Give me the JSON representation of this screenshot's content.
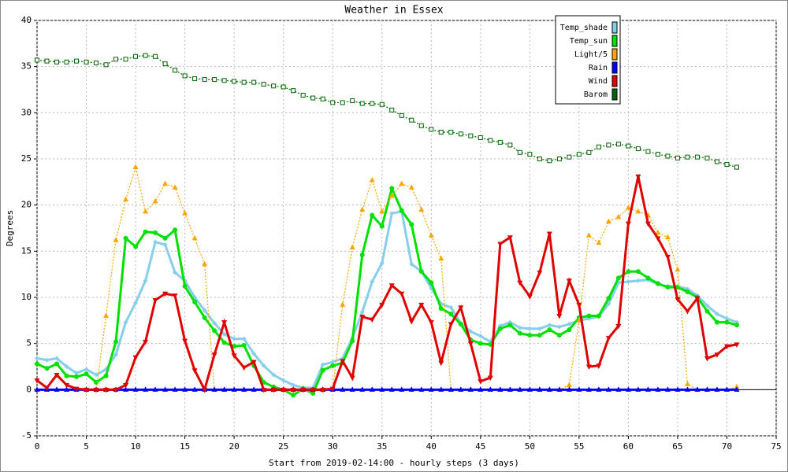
{
  "chart_data": {
    "type": "line",
    "title": "Weather in Essex",
    "x_label": "Start from 2019-02-14:00 - hourly steps (3 days)",
    "y_label": "Degrees",
    "x": [
      0,
      1,
      2,
      3,
      4,
      5,
      6,
      7,
      8,
      9,
      10,
      11,
      12,
      13,
      14,
      15,
      16,
      17,
      18,
      19,
      20,
      21,
      22,
      23,
      24,
      25,
      26,
      27,
      28,
      29,
      30,
      31,
      32,
      33,
      34,
      35,
      36,
      37,
      38,
      39,
      40,
      41,
      42,
      43,
      44,
      45,
      46,
      47,
      48,
      49,
      50,
      51,
      52,
      53,
      54,
      55,
      56,
      57,
      58,
      59,
      60,
      61,
      62,
      63,
      64,
      65,
      66,
      67,
      68,
      69,
      70,
      71
    ],
    "xlim": [
      0,
      75
    ],
    "xticks": [
      0,
      5,
      10,
      15,
      20,
      25,
      30,
      35,
      40,
      45,
      50,
      55,
      60,
      65,
      70,
      75
    ],
    "ylim": [
      -5,
      40
    ],
    "yticks": [
      -5,
      0,
      5,
      10,
      15,
      20,
      25,
      30,
      35,
      40
    ],
    "grid": true,
    "legend": "upper right",
    "series": [
      {
        "name": "Temp_shade",
        "color": "#87ceeb",
        "values": [
          3.4,
          3.2,
          3.4,
          2.5,
          1.8,
          2.2,
          1.6,
          2.2,
          3.8,
          7.3,
          9.4,
          11.8,
          16.0,
          15.7,
          12.7,
          11.8,
          10.0,
          8.6,
          7.2,
          6.0,
          5.5,
          5.5,
          3.9,
          2.6,
          1.6,
          1.0,
          0.5,
          0.2,
          0.2,
          2.7,
          3.0,
          3.4,
          5.6,
          8.4,
          11.7,
          13.7,
          19.1,
          19.3,
          13.6,
          12.8,
          11.0,
          9.3,
          8.9,
          7.2,
          6.3,
          5.8,
          5.2,
          6.9,
          7.3,
          6.7,
          6.6,
          6.6,
          7.0,
          6.8,
          7.1,
          7.5,
          7.7,
          7.9,
          9.3,
          11.6,
          11.7,
          11.8,
          11.9,
          11.4,
          11.2,
          11.2,
          10.9,
          10.2,
          9.1,
          8.2,
          7.7,
          7.3
        ]
      },
      {
        "name": "Temp_sun",
        "color": "#00e000",
        "values": [
          2.8,
          2.3,
          2.8,
          1.5,
          1.4,
          1.7,
          0.8,
          1.5,
          5.2,
          16.4,
          15.5,
          17.1,
          17.0,
          16.4,
          17.3,
          11.2,
          9.5,
          7.8,
          6.4,
          5.1,
          4.7,
          4.8,
          2.6,
          0.8,
          0.3,
          0.0,
          -0.6,
          0.1,
          -0.4,
          2.1,
          2.6,
          2.9,
          5.3,
          14.6,
          18.9,
          17.7,
          21.8,
          19.4,
          17.9,
          12.8,
          11.6,
          8.8,
          8.2,
          7.1,
          5.4,
          5.0,
          4.9,
          6.6,
          7.0,
          6.1,
          5.9,
          5.9,
          6.5,
          5.9,
          6.5,
          7.8,
          8.0,
          8.0,
          9.9,
          12.1,
          12.8,
          12.8,
          12.1,
          11.5,
          11.1,
          11.1,
          10.6,
          10.0,
          8.5,
          7.3,
          7.3,
          7.0
        ]
      },
      {
        "name": "Light/5",
        "color": "#ffa500",
        "values": [
          0,
          0,
          0,
          0,
          0,
          0,
          0,
          8.0,
          16.2,
          20.6,
          24.1,
          19.3,
          20.4,
          22.3,
          21.9,
          19.1,
          16.4,
          13.6,
          0,
          0,
          0,
          0,
          0,
          0,
          0,
          0,
          0,
          0,
          0,
          0,
          0,
          9.2,
          15.4,
          19.5,
          22.7,
          19.3,
          21.0,
          22.3,
          21.9,
          19.5,
          16.7,
          14.2,
          0,
          0,
          0,
          0,
          0,
          0,
          0,
          0,
          0,
          0,
          0,
          0,
          0.5,
          7.5,
          16.7,
          15.9,
          18.2,
          18.7,
          19.7,
          19.3,
          18.9,
          17.0,
          16.5,
          13.0,
          0.6,
          0,
          0,
          0,
          0,
          0.3
        ]
      },
      {
        "name": "Rain",
        "color": "#0000ff",
        "values": [
          0,
          0,
          0,
          0,
          0,
          0,
          0,
          0,
          0,
          0,
          0,
          0,
          0,
          0,
          0,
          0,
          0,
          0,
          0,
          0,
          0,
          0,
          0,
          0,
          0,
          0,
          0,
          0,
          0,
          0,
          0,
          0,
          0,
          0,
          0,
          0,
          0,
          0,
          0,
          0,
          0,
          0,
          0,
          0,
          0,
          0,
          0,
          0,
          0,
          0,
          0,
          0,
          0,
          0,
          0,
          0,
          0,
          0,
          0,
          0,
          0,
          0,
          0,
          0,
          0,
          0,
          0,
          0,
          0,
          0,
          0,
          0
        ]
      },
      {
        "name": "Wind",
        "color": "#e00000",
        "values": [
          1.0,
          0.2,
          1.6,
          0.5,
          0.1,
          0,
          0,
          0,
          0,
          0.5,
          3.5,
          5.2,
          9.7,
          10.4,
          10.2,
          5.3,
          2.1,
          0,
          3.8,
          7.3,
          3.7,
          2.4,
          3.0,
          0,
          0,
          0,
          0,
          0,
          0,
          0,
          0.1,
          3.1,
          1.3,
          7.9,
          7.6,
          9.2,
          11.3,
          10.4,
          7.4,
          9.2,
          7.3,
          2.9,
          7.1,
          8.9,
          5.0,
          0.9,
          1.3,
          15.8,
          16.5,
          11.6,
          10.1,
          12.7,
          16.9,
          8.0,
          11.8,
          9.2,
          2.5,
          2.6,
          5.6,
          6.9,
          18.0,
          23.1,
          18.0,
          16.4,
          14.4,
          9.8,
          8.5,
          9.9,
          3.4,
          3.8,
          4.7,
          4.9
        ]
      },
      {
        "name": "Barom",
        "color": "#006400",
        "values": [
          35.7,
          35.6,
          35.5,
          35.5,
          35.6,
          35.5,
          35.4,
          35.2,
          35.8,
          35.8,
          36.1,
          36.2,
          36.1,
          35.3,
          34.6,
          34.0,
          33.7,
          33.6,
          33.6,
          33.5,
          33.4,
          33.3,
          33.3,
          33.1,
          32.9,
          32.8,
          32.4,
          31.9,
          31.6,
          31.5,
          31.1,
          31.1,
          31.3,
          31.0,
          31.0,
          30.9,
          30.3,
          29.7,
          29.2,
          28.6,
          28.2,
          27.9,
          27.9,
          27.7,
          27.5,
          27.3,
          27.0,
          26.8,
          26.5,
          25.7,
          25.5,
          25.0,
          24.8,
          25.0,
          25.2,
          25.5,
          25.7,
          26.3,
          26.5,
          26.6,
          26.4,
          26.1,
          25.8,
          25.5,
          25.3,
          25.1,
          25.2,
          25.2,
          25.1,
          24.7,
          24.4,
          24.1
        ]
      }
    ]
  }
}
